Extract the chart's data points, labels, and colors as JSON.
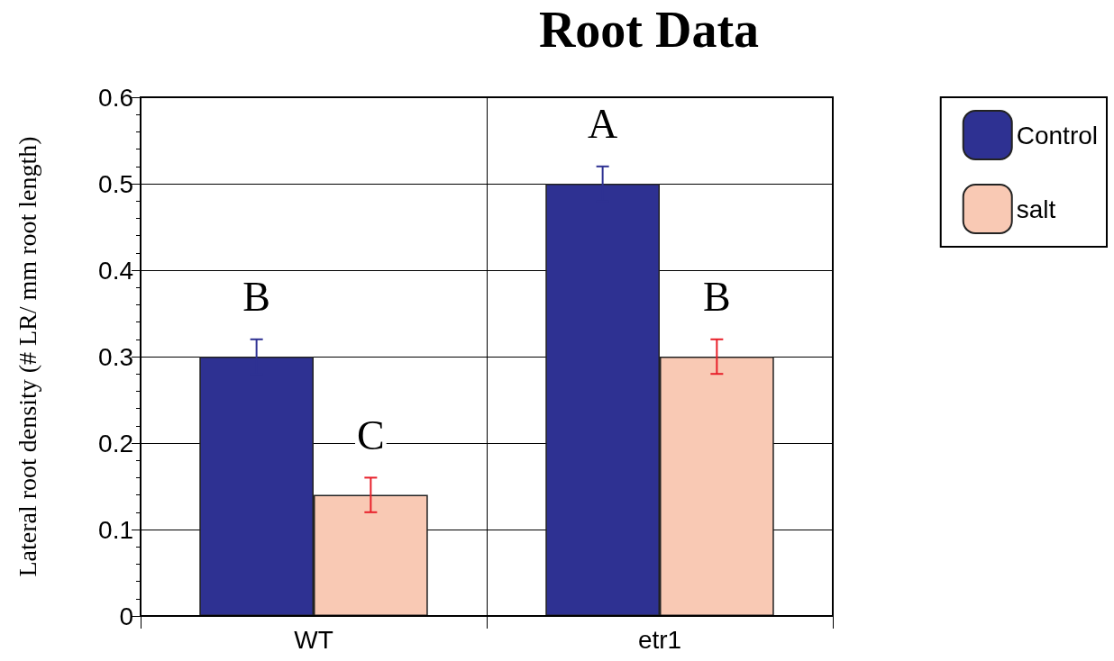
{
  "chart_data": {
    "type": "bar",
    "title": "Root Data",
    "ylabel": "Lateral root density (# LR/ mm root length)",
    "categories": [
      "WT",
      "etr1"
    ],
    "series": [
      {
        "name": "Control",
        "color": "#2e3192",
        "values": [
          0.3,
          0.5
        ],
        "errors": [
          0.02,
          0.02
        ]
      },
      {
        "name": "salt",
        "color": "#f9c9b4",
        "values": [
          0.14,
          0.3
        ],
        "errors": [
          0.02,
          0.02
        ]
      }
    ],
    "ylim": [
      0,
      0.6
    ],
    "yticks": [
      0,
      0.1,
      0.2,
      0.3,
      0.4,
      0.5,
      0.6
    ],
    "grid": true,
    "legend": "top right",
    "annotations": [
      "B",
      "C",
      "A",
      "B"
    ]
  }
}
